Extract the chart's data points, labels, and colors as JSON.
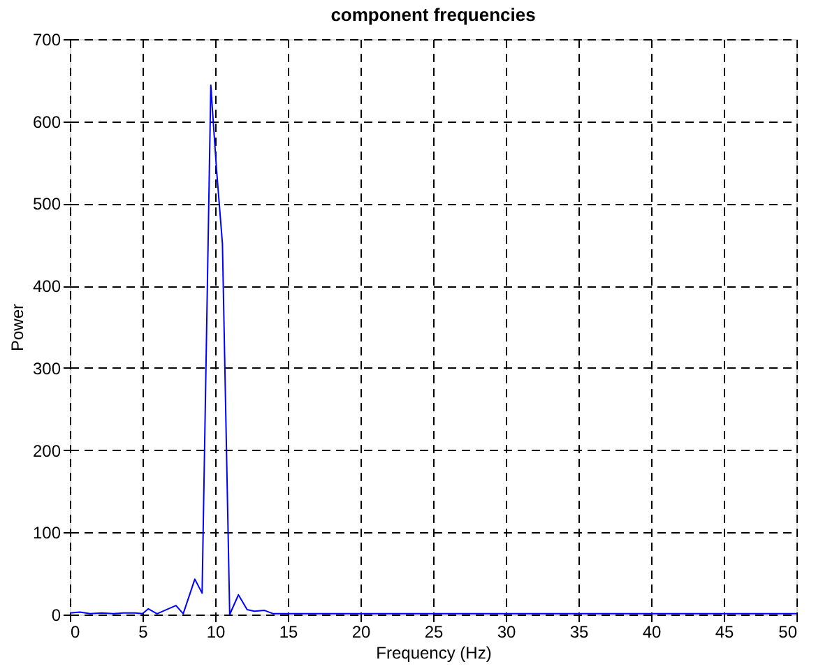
{
  "chart_data": {
    "type": "line",
    "title": "component frequencies",
    "xlabel": "Frequency (Hz)",
    "ylabel": "Power",
    "series": [
      {
        "color": "#0000ff",
        "x": [
          0,
          0.7,
          1.4,
          2.2,
          3,
          3.7,
          4.5,
          5,
          5.4,
          6,
          7.3,
          7.8,
          8.6,
          9.1,
          9.7,
          9.8,
          10.1,
          10.5,
          11,
          11.6,
          12.2,
          12.7,
          13.4,
          14,
          20,
          30,
          40,
          50
        ],
        "values": [
          2,
          3,
          1,
          2,
          1,
          2,
          2,
          1,
          7,
          1,
          11,
          1,
          43,
          26,
          644,
          617,
          540,
          451,
          0,
          24,
          6,
          4,
          5,
          1,
          1,
          1,
          1,
          1
        ]
      }
    ],
    "xlim": [
      0,
      50
    ],
    "ylim": [
      0,
      700
    ],
    "xticks": [
      0,
      5,
      10,
      15,
      20,
      25,
      30,
      35,
      40,
      45,
      50
    ],
    "yticks": [
      0,
      100,
      200,
      300,
      400,
      500,
      600,
      700
    ],
    "grid": true,
    "line_style": "solid",
    "marker": "none"
  }
}
